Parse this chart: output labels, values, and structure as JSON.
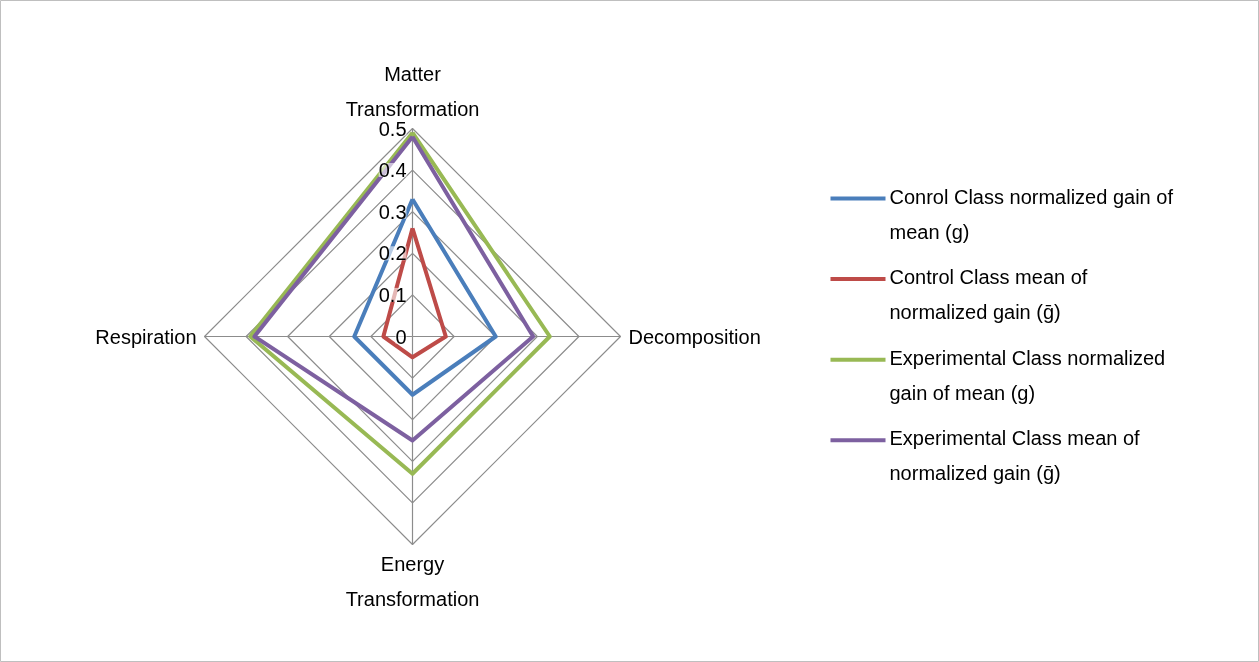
{
  "chart_data": {
    "type": "radar",
    "categories": [
      "Matter Transformation",
      "Decomposition",
      "Energy Transformation",
      "Respiration"
    ],
    "series": [
      {
        "name": "Conrol Class normalized gain of mean (g)",
        "color": "#4a7ebb",
        "values": [
          0.33,
          0.2,
          0.14,
          0.14
        ]
      },
      {
        "name": "Control Class mean of normalized gain (ḡ)",
        "color": "#be4b48",
        "values": [
          0.26,
          0.08,
          0.05,
          0.07
        ]
      },
      {
        "name": "Experimental Class normalized gain of mean (g)",
        "color": "#98b954",
        "values": [
          0.49,
          0.33,
          0.33,
          0.39
        ]
      },
      {
        "name": "Experimental Class mean of normalized gain (ḡ)",
        "color": "#7d60a0",
        "values": [
          0.48,
          0.29,
          0.25,
          0.38
        ]
      }
    ],
    "ylim": [
      0,
      0.5
    ],
    "yticks": [
      0,
      0.1,
      0.2,
      0.3,
      0.4,
      0.5
    ],
    "grid": true,
    "legend": "right",
    "line_style": "solid"
  }
}
